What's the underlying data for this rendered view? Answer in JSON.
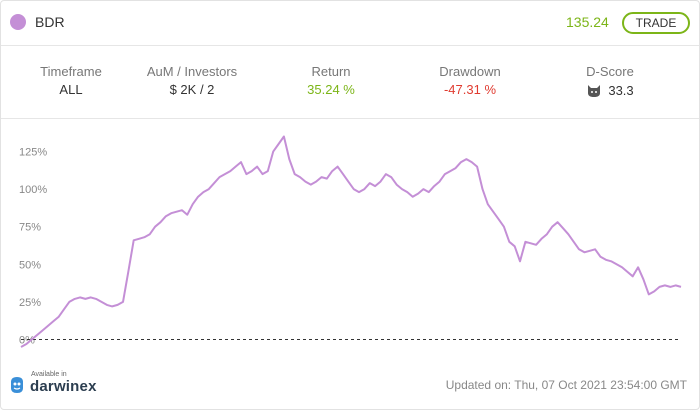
{
  "header": {
    "ticker": "BDR",
    "price": "135.24",
    "trade_label": "TRADE"
  },
  "colors": {
    "accent": "#c48fd6",
    "return_green": "#7cb518",
    "drawdown_red": "#e03c31",
    "line": "#c48fd6"
  },
  "stats": {
    "timeframe_label": "Timeframe",
    "timeframe_value": "ALL",
    "aum_label": "AuM / Investors",
    "aum_value": "$ 2K / 2",
    "return_label": "Return",
    "return_value": "35.24 %",
    "drawdown_label": "Drawdown",
    "drawdown_value": "-47.31 %",
    "dscore_label": "D-Score",
    "dscore_value": "33.3",
    "dscore_icon": "cat-icon"
  },
  "footer": {
    "available_in": "Available in",
    "brand": "darwinex",
    "updated": "Updated on: Thu, 07 Oct 2021 23:54:00 GMT"
  },
  "chart_data": {
    "type": "line",
    "xlabel": "",
    "ylabel": "",
    "ylim": [
      -5,
      140
    ],
    "yticks": [
      {
        "value": 0,
        "label": "0%"
      },
      {
        "value": 25,
        "label": "25%"
      },
      {
        "value": 50,
        "label": "50%"
      },
      {
        "value": 75,
        "label": "75%"
      },
      {
        "value": 100,
        "label": "100%"
      },
      {
        "value": 125,
        "label": "125%"
      }
    ],
    "baseline": 0,
    "series": [
      {
        "values": [
          -5,
          -3,
          0,
          3,
          6,
          9,
          12,
          15,
          20,
          25,
          27,
          28,
          27,
          28,
          27,
          25,
          23,
          22,
          23,
          25,
          45,
          66,
          67,
          68,
          70,
          75,
          78,
          82,
          84,
          85,
          86,
          83,
          90,
          95,
          98,
          100,
          104,
          108,
          110,
          112,
          115,
          118,
          110,
          112,
          115,
          110,
          112,
          125,
          130,
          135,
          120,
          110,
          108,
          105,
          103,
          105,
          108,
          107,
          112,
          115,
          110,
          105,
          100,
          98,
          100,
          104,
          102,
          105,
          110,
          108,
          103,
          100,
          98,
          95,
          97,
          100,
          98,
          102,
          105,
          110,
          112,
          114,
          118,
          120,
          118,
          115,
          100,
          90,
          85,
          80,
          75,
          65,
          62,
          52,
          65,
          64,
          63,
          67,
          70,
          75,
          78,
          74,
          70,
          65,
          60,
          58,
          59,
          60,
          55,
          53,
          52,
          50,
          48,
          45,
          42,
          48,
          40,
          30,
          32,
          35,
          36,
          35,
          36,
          35
        ]
      }
    ]
  }
}
